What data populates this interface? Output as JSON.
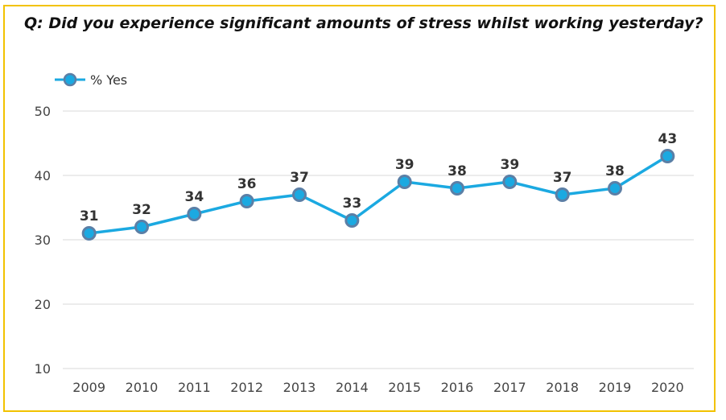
{
  "chart_data": {
    "type": "line",
    "title": "Q: Did you experience significant amounts of stress whilst working yesterday?",
    "categories": [
      "2009",
      "2010",
      "2011",
      "2012",
      "2013",
      "2014",
      "2015",
      "2016",
      "2017",
      "2018",
      "2019",
      "2020"
    ],
    "series": [
      {
        "name": "% Yes",
        "values": [
          31,
          32,
          34,
          36,
          37,
          33,
          39,
          38,
          39,
          37,
          38,
          43
        ],
        "color": "#1ba9e1"
      }
    ],
    "ylim": [
      10,
      50
    ],
    "yticks": [
      "10",
      "20",
      "30",
      "40",
      "50"
    ],
    "grid": true,
    "legend": "top-left",
    "data_labels": true
  },
  "colors": {
    "border": "#f2c200",
    "line": "#1ba9e1",
    "marker_edge": "#5b7fa6",
    "gridline": "#d9d9d9"
  }
}
